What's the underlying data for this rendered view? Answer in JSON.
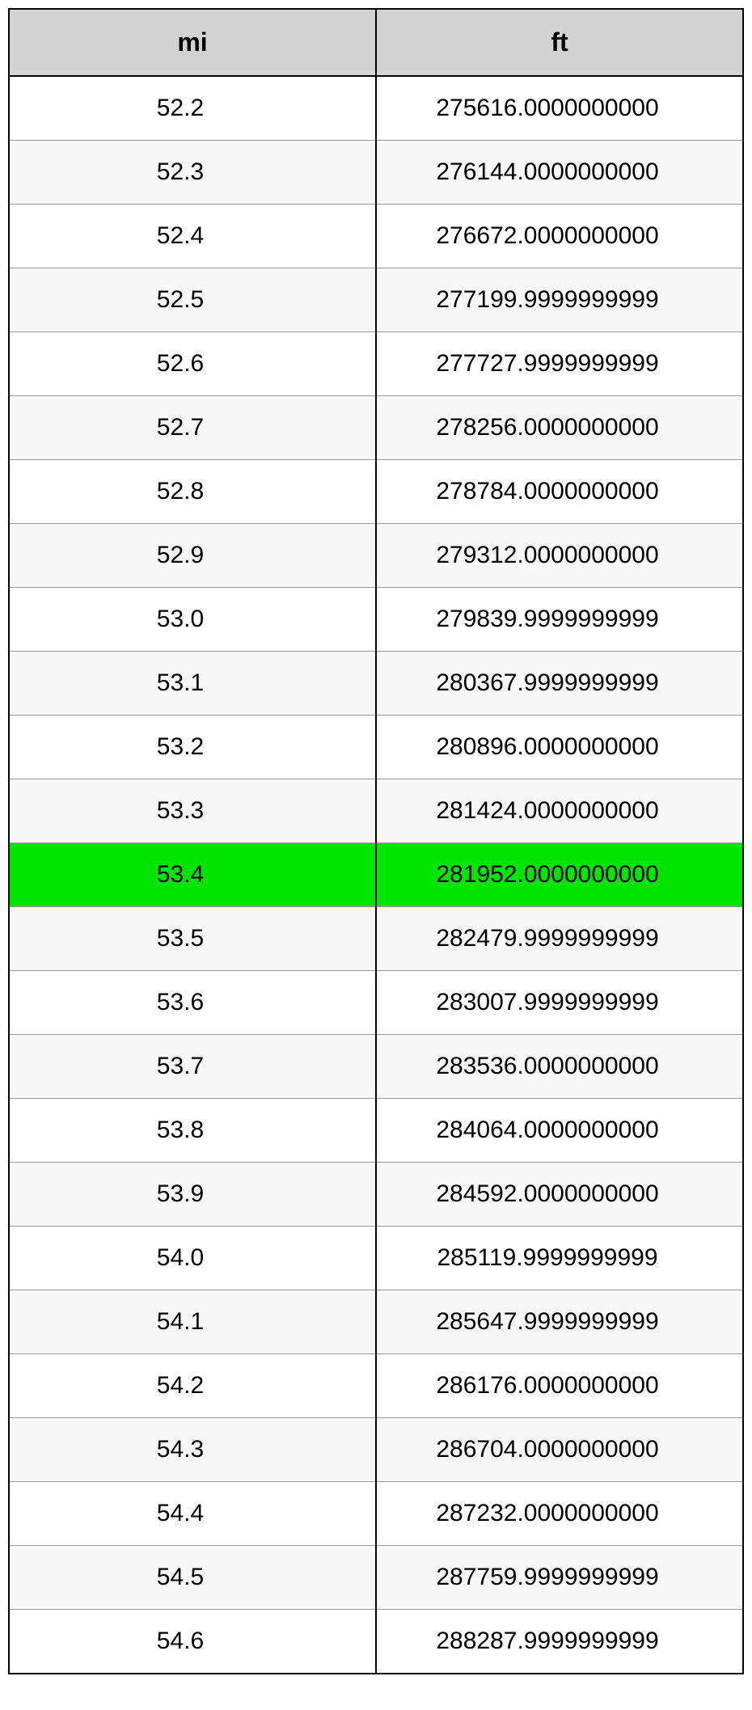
{
  "table": {
    "type": "table",
    "columns": [
      "mi",
      "ft"
    ],
    "header_bg_color": "#d3d3d3",
    "header_fontsize": 32,
    "header_fontweight": "bold",
    "cell_fontsize": 30,
    "border_outer_color": "#000000",
    "border_outer_width": 2,
    "border_inner_color": "#999999",
    "border_inner_width": 1,
    "row_even_bg": "#f7f7f7",
    "row_odd_bg": "#ffffff",
    "highlight_bg": "#00e500",
    "highlighted_row_index": 12,
    "rows": [
      {
        "mi": "52.2",
        "ft": "275616.0000000000",
        "highlight": false
      },
      {
        "mi": "52.3",
        "ft": "276144.0000000000",
        "highlight": false
      },
      {
        "mi": "52.4",
        "ft": "276672.0000000000",
        "highlight": false
      },
      {
        "mi": "52.5",
        "ft": "277199.9999999999",
        "highlight": false
      },
      {
        "mi": "52.6",
        "ft": "277727.9999999999",
        "highlight": false
      },
      {
        "mi": "52.7",
        "ft": "278256.0000000000",
        "highlight": false
      },
      {
        "mi": "52.8",
        "ft": "278784.0000000000",
        "highlight": false
      },
      {
        "mi": "52.9",
        "ft": "279312.0000000000",
        "highlight": false
      },
      {
        "mi": "53.0",
        "ft": "279839.9999999999",
        "highlight": false
      },
      {
        "mi": "53.1",
        "ft": "280367.9999999999",
        "highlight": false
      },
      {
        "mi": "53.2",
        "ft": "280896.0000000000",
        "highlight": false
      },
      {
        "mi": "53.3",
        "ft": "281424.0000000000",
        "highlight": false
      },
      {
        "mi": "53.4",
        "ft": "281952.0000000000",
        "highlight": true
      },
      {
        "mi": "53.5",
        "ft": "282479.9999999999",
        "highlight": false
      },
      {
        "mi": "53.6",
        "ft": "283007.9999999999",
        "highlight": false
      },
      {
        "mi": "53.7",
        "ft": "283536.0000000000",
        "highlight": false
      },
      {
        "mi": "53.8",
        "ft": "284064.0000000000",
        "highlight": false
      },
      {
        "mi": "53.9",
        "ft": "284592.0000000000",
        "highlight": false
      },
      {
        "mi": "54.0",
        "ft": "285119.9999999999",
        "highlight": false
      },
      {
        "mi": "54.1",
        "ft": "285647.9999999999",
        "highlight": false
      },
      {
        "mi": "54.2",
        "ft": "286176.0000000000",
        "highlight": false
      },
      {
        "mi": "54.3",
        "ft": "286704.0000000000",
        "highlight": false
      },
      {
        "mi": "54.4",
        "ft": "287232.0000000000",
        "highlight": false
      },
      {
        "mi": "54.5",
        "ft": "287759.9999999999",
        "highlight": false
      },
      {
        "mi": "54.6",
        "ft": "288287.9999999999",
        "highlight": false
      }
    ]
  }
}
